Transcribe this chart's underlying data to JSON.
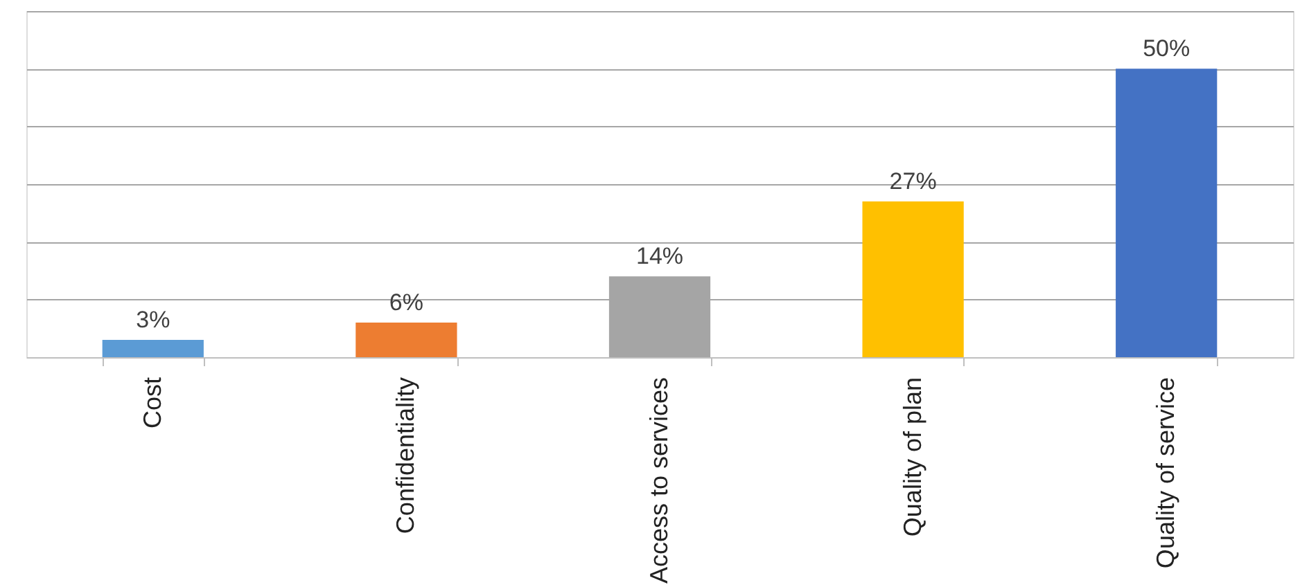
{
  "chart_data": {
    "type": "bar",
    "categories": [
      "Cost",
      "Confidentiality",
      "Access to services",
      "Quality of plan",
      "Quality of service"
    ],
    "values": [
      3,
      6,
      14,
      27,
      50
    ],
    "colors": [
      "#5b9bd5",
      "#ed7d31",
      "#a5a5a5",
      "#ffc000",
      "#4472c4"
    ],
    "value_labels": [
      "3%",
      "6%",
      "14%",
      "27%",
      "50%"
    ],
    "ylim": [
      0,
      60
    ],
    "yticks": [
      {
        "value": 0,
        "label": null
      },
      {
        "value": 10,
        "label": null
      },
      {
        "value": 20,
        "label": null
      },
      {
        "value": 30,
        "label": null
      },
      {
        "value": 40,
        "label": null
      },
      {
        "value": 50,
        "label": null
      },
      {
        "value": 60,
        "label": null
      }
    ],
    "grid": "y",
    "tick_labels": "x",
    "legend": false
  }
}
